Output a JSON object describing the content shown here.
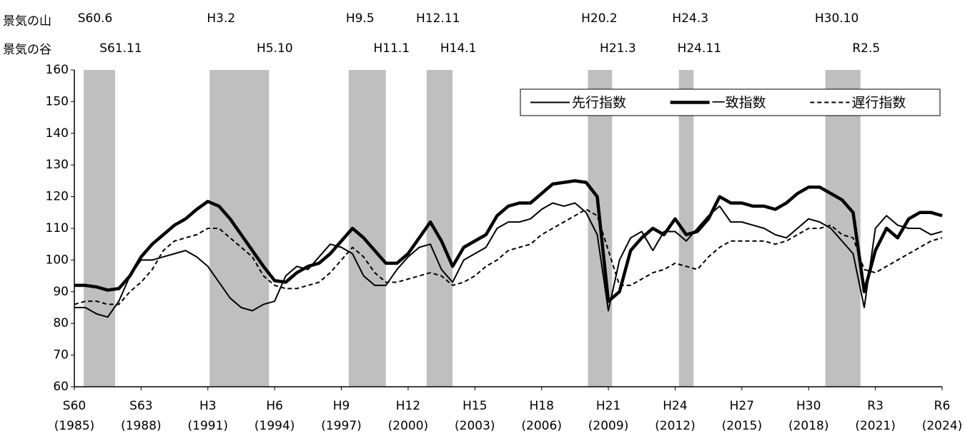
{
  "chart_data": {
    "type": "line",
    "peak_row_label": "景気の山",
    "trough_row_label": "景気の谷",
    "recessions": [
      {
        "peak": 1985.42,
        "peak_label": "S60.6",
        "trough": 1986.83,
        "trough_label": "S61.11"
      },
      {
        "peak": 1991.08,
        "peak_label": "H3.2",
        "trough": 1993.75,
        "trough_label": "H5.10"
      },
      {
        "peak": 1997.33,
        "peak_label": "H9.5",
        "trough": 1999.0,
        "trough_label": "H11.1"
      },
      {
        "peak": 2000.83,
        "peak_label": "H12.11",
        "trough": 2002.0,
        "trough_label": "H14.1"
      },
      {
        "peak": 2008.08,
        "peak_label": "H20.2",
        "trough": 2009.17,
        "trough_label": "H21.3"
      },
      {
        "peak": 2012.17,
        "peak_label": "H24.3",
        "trough": 2012.83,
        "trough_label": "H24.11"
      },
      {
        "peak": 2018.75,
        "peak_label": "H30.10",
        "trough": 2020.33,
        "trough_label": "R2.5"
      }
    ],
    "band_color": "#bfbfbf",
    "x": [
      1985,
      1985.5,
      1986,
      1986.5,
      1987,
      1987.5,
      1988,
      1988.5,
      1989,
      1989.5,
      1990,
      1990.5,
      1991,
      1991.5,
      1992,
      1992.5,
      1993,
      1993.5,
      1994,
      1994.5,
      1995,
      1995.5,
      1996,
      1996.5,
      1997,
      1997.5,
      1998,
      1998.5,
      1999,
      1999.5,
      2000,
      2000.5,
      2001,
      2001.5,
      2002,
      2002.5,
      2003,
      2003.5,
      2004,
      2004.5,
      2005,
      2005.5,
      2006,
      2006.5,
      2007,
      2007.5,
      2008,
      2008.5,
      2009,
      2009.5,
      2010,
      2010.5,
      2011,
      2011.5,
      2012,
      2012.5,
      2013,
      2013.5,
      2014,
      2014.5,
      2015,
      2015.5,
      2016,
      2016.5,
      2017,
      2017.5,
      2018,
      2018.5,
      2019,
      2019.5,
      2020,
      2020.5,
      2021,
      2021.5,
      2022,
      2022.5,
      2023,
      2023.5,
      2024
    ],
    "series": [
      {
        "name": "先行指数",
        "color": "#000000",
        "width": 2,
        "dash": false,
        "values": [
          85,
          85,
          83,
          82,
          87,
          95,
          100,
          100,
          101,
          102,
          103,
          101,
          98,
          93,
          88,
          85,
          84,
          86,
          87,
          95,
          98,
          97,
          101,
          105,
          104,
          102,
          95,
          92,
          92,
          97,
          101,
          104,
          105,
          97,
          93,
          100,
          102,
          104,
          110,
          112,
          112,
          113,
          116,
          118,
          117,
          118,
          115,
          108,
          84,
          100,
          107,
          109,
          103,
          109,
          109,
          106,
          110,
          114,
          117,
          112,
          112,
          111,
          110,
          108,
          107,
          110,
          113,
          112,
          110,
          106,
          102,
          85,
          110,
          114,
          111,
          110,
          110,
          108,
          109
        ]
      },
      {
        "name": "一致指数",
        "color": "#000000",
        "width": 4.5,
        "dash": false,
        "values": [
          92,
          92,
          91.5,
          90.5,
          91,
          95,
          101,
          105,
          108,
          111,
          113,
          116,
          118.5,
          117,
          113,
          108,
          103,
          98,
          93.5,
          93,
          96,
          98,
          99,
          102,
          106,
          110,
          107,
          103,
          99,
          99,
          102,
          107,
          112,
          106,
          98,
          104,
          106,
          108,
          114,
          117,
          118,
          118,
          121,
          124,
          124.5,
          125,
          124.5,
          120,
          87,
          90,
          103,
          107,
          110,
          108,
          113,
          108,
          109,
          113,
          120,
          118,
          118,
          117,
          117,
          116,
          118,
          121,
          123,
          123,
          121,
          119,
          115,
          90,
          103,
          110,
          107,
          113,
          115,
          115,
          114
        ]
      },
      {
        "name": "遅行指数",
        "color": "#000000",
        "width": 2,
        "dash": true,
        "values": [
          86,
          87,
          87,
          86,
          86,
          90,
          93,
          97,
          103,
          106,
          107,
          108,
          110,
          110,
          107,
          104,
          101,
          95,
          92,
          91,
          91,
          92,
          93,
          96,
          100,
          104,
          101,
          96,
          93,
          93,
          94,
          95,
          96,
          95,
          92,
          93,
          95,
          98,
          100,
          103,
          104,
          105,
          108,
          110,
          112,
          114,
          116,
          114,
          103,
          92,
          92,
          94,
          96,
          97,
          99,
          98,
          97,
          101,
          104,
          106,
          106,
          106,
          106,
          105,
          106,
          108,
          110,
          110,
          111,
          108,
          107,
          97,
          96,
          98,
          100,
          102,
          104,
          106,
          107
        ]
      }
    ],
    "xlim": [
      1985,
      2024
    ],
    "xticks": [
      {
        "value": 1985,
        "label": "S60",
        "label2": "(1985)"
      },
      {
        "value": 1988,
        "label": "S63",
        "label2": "(1988)"
      },
      {
        "value": 1991,
        "label": "H3",
        "label2": "(1991)"
      },
      {
        "value": 1994,
        "label": "H6",
        "label2": "(1994)"
      },
      {
        "value": 1997,
        "label": "H9",
        "label2": "(1997)"
      },
      {
        "value": 2000,
        "label": "H12",
        "label2": "(2000)"
      },
      {
        "value": 2003,
        "label": "H15",
        "label2": "(2003)"
      },
      {
        "value": 2006,
        "label": "H18",
        "label2": "(2006)"
      },
      {
        "value": 2009,
        "label": "H21",
        "label2": "(2009)"
      },
      {
        "value": 2012,
        "label": "H24",
        "label2": "(2012)"
      },
      {
        "value": 2015,
        "label": "H27",
        "label2": "(2015)"
      },
      {
        "value": 2018,
        "label": "H30",
        "label2": "(2018)"
      },
      {
        "value": 2021,
        "label": "R3",
        "label2": "(2021)"
      },
      {
        "value": 2024,
        "label": "R6",
        "label2": "(2024)"
      }
    ],
    "ylim": [
      60,
      160
    ],
    "yticks": [
      60,
      70,
      80,
      90,
      100,
      110,
      120,
      130,
      140,
      150,
      160
    ],
    "grid": false,
    "legend": "top-right"
  }
}
